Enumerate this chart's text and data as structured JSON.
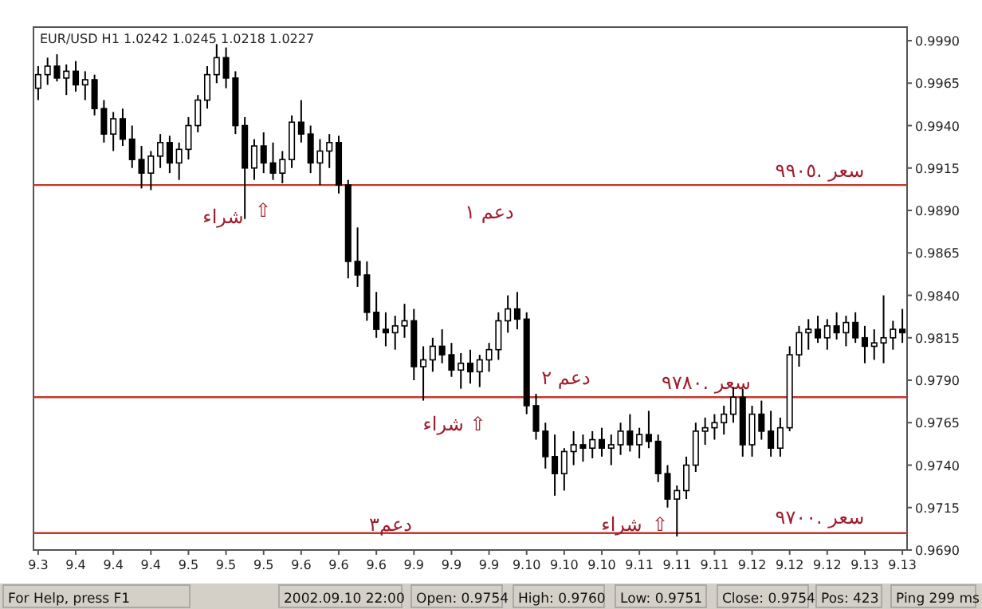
{
  "chart_data": {
    "type": "candlestick",
    "title": "EUR/USD H1  1.0242  1.0245  1.0218  1.0227",
    "categories": [
      "9.3",
      null,
      null,
      null,
      "9.4",
      null,
      null,
      null,
      "9.4",
      null,
      null,
      null,
      "9.4",
      null,
      null,
      null,
      "9.5",
      null,
      null,
      null,
      "9.5",
      null,
      null,
      null,
      "9.5",
      null,
      null,
      null,
      "9.6",
      null,
      null,
      null,
      "9.6",
      null,
      null,
      null,
      "9.6",
      null,
      null,
      null,
      "9.9",
      null,
      null,
      null,
      "9.9",
      null,
      null,
      null,
      "9.9",
      null,
      null,
      null,
      "9.10",
      null,
      null,
      null,
      "9.10",
      null,
      null,
      null,
      "9.10",
      null,
      null,
      null,
      "9.11",
      null,
      null,
      null,
      "9.11",
      null,
      null,
      null,
      "9.11",
      null,
      null,
      null,
      "9.12",
      null,
      null,
      null,
      "9.12",
      null,
      null,
      null,
      "9.12",
      null,
      null,
      null,
      "9.13",
      null,
      null,
      null,
      "9.13"
    ],
    "ohlc": [
      [
        0.9962,
        0.9975,
        0.9955,
        0.997
      ],
      [
        0.997,
        0.998,
        0.9964,
        0.9975
      ],
      [
        0.9975,
        0.9982,
        0.9966,
        0.9968
      ],
      [
        0.9968,
        0.9976,
        0.9958,
        0.9972
      ],
      [
        0.9972,
        0.9978,
        0.996,
        0.9964
      ],
      [
        0.9964,
        0.9972,
        0.9955,
        0.9967
      ],
      [
        0.9967,
        0.997,
        0.9946,
        0.995
      ],
      [
        0.995,
        0.9955,
        0.993,
        0.9935
      ],
      [
        0.9935,
        0.9948,
        0.9925,
        0.9944
      ],
      [
        0.9944,
        0.995,
        0.9928,
        0.9932
      ],
      [
        0.9932,
        0.994,
        0.9915,
        0.992
      ],
      [
        0.992,
        0.9928,
        0.9903,
        0.9912
      ],
      [
        0.9912,
        0.9925,
        0.9902,
        0.9922
      ],
      [
        0.9922,
        0.9935,
        0.9915,
        0.993
      ],
      [
        0.993,
        0.9934,
        0.9912,
        0.9918
      ],
      [
        0.9918,
        0.993,
        0.9908,
        0.9926
      ],
      [
        0.9926,
        0.9945,
        0.992,
        0.994
      ],
      [
        0.994,
        0.9958,
        0.9936,
        0.9955
      ],
      [
        0.9955,
        0.9975,
        0.995,
        0.997
      ],
      [
        0.997,
        0.9988,
        0.9965,
        0.998
      ],
      [
        0.998,
        0.9986,
        0.9962,
        0.9968
      ],
      [
        0.9968,
        0.9972,
        0.9935,
        0.994
      ],
      [
        0.994,
        0.9945,
        0.9885,
        0.9915
      ],
      [
        0.9915,
        0.9932,
        0.9908,
        0.9928
      ],
      [
        0.9928,
        0.9936,
        0.9912,
        0.9918
      ],
      [
        0.9918,
        0.993,
        0.9908,
        0.9912
      ],
      [
        0.9912,
        0.9925,
        0.9906,
        0.992
      ],
      [
        0.992,
        0.9946,
        0.9915,
        0.9942
      ],
      [
        0.9942,
        0.9955,
        0.993,
        0.9935
      ],
      [
        0.9935,
        0.994,
        0.9912,
        0.9918
      ],
      [
        0.9918,
        0.9932,
        0.9905,
        0.9925
      ],
      [
        0.9925,
        0.9935,
        0.9915,
        0.993
      ],
      [
        0.993,
        0.9934,
        0.99,
        0.9905
      ],
      [
        0.9905,
        0.9908,
        0.985,
        0.986
      ],
      [
        0.986,
        0.988,
        0.9845,
        0.9852
      ],
      [
        0.9852,
        0.986,
        0.9825,
        0.983
      ],
      [
        0.983,
        0.9842,
        0.9815,
        0.982
      ],
      [
        0.982,
        0.983,
        0.981,
        0.9818
      ],
      [
        0.9818,
        0.9828,
        0.9808,
        0.9822
      ],
      [
        0.9822,
        0.9835,
        0.9815,
        0.9825
      ],
      [
        0.9825,
        0.9832,
        0.979,
        0.9798
      ],
      [
        0.9798,
        0.981,
        0.9778,
        0.9802
      ],
      [
        0.9802,
        0.9815,
        0.9795,
        0.981
      ],
      [
        0.981,
        0.982,
        0.98,
        0.9805
      ],
      [
        0.9805,
        0.9812,
        0.9792,
        0.9796
      ],
      [
        0.9796,
        0.9806,
        0.9785,
        0.98
      ],
      [
        0.98,
        0.9808,
        0.9788,
        0.9795
      ],
      [
        0.9795,
        0.9805,
        0.9786,
        0.9802
      ],
      [
        0.9802,
        0.9812,
        0.9795,
        0.9808
      ],
      [
        0.9808,
        0.983,
        0.9802,
        0.9825
      ],
      [
        0.9825,
        0.984,
        0.9818,
        0.9832
      ],
      [
        0.9832,
        0.9842,
        0.982,
        0.9826
      ],
      [
        0.9826,
        0.983,
        0.977,
        0.9775
      ],
      [
        0.9775,
        0.9782,
        0.9755,
        0.976
      ],
      [
        0.976,
        0.9765,
        0.9738,
        0.9745
      ],
      [
        0.9745,
        0.9758,
        0.9722,
        0.9735
      ],
      [
        0.9735,
        0.975,
        0.9725,
        0.9748
      ],
      [
        0.9748,
        0.976,
        0.974,
        0.9752
      ],
      [
        0.9752,
        0.9758,
        0.9742,
        0.975
      ],
      [
        0.975,
        0.976,
        0.9744,
        0.9755
      ],
      [
        0.9755,
        0.9762,
        0.9745,
        0.975
      ],
      [
        0.975,
        0.9758,
        0.974,
        0.9752
      ],
      [
        0.9752,
        0.9765,
        0.9746,
        0.976
      ],
      [
        0.976,
        0.977,
        0.9748,
        0.9752
      ],
      [
        0.9752,
        0.9762,
        0.9744,
        0.9758
      ],
      [
        0.9758,
        0.9772,
        0.975,
        0.9754
      ],
      [
        0.9754,
        0.9758,
        0.973,
        0.9735
      ],
      [
        0.9735,
        0.974,
        0.9715,
        0.972
      ],
      [
        0.972,
        0.9728,
        0.9698,
        0.9725
      ],
      [
        0.9725,
        0.9745,
        0.972,
        0.974
      ],
      [
        0.974,
        0.9765,
        0.9736,
        0.976
      ],
      [
        0.976,
        0.9768,
        0.9752,
        0.9762
      ],
      [
        0.9762,
        0.977,
        0.9755,
        0.9765
      ],
      [
        0.9765,
        0.9775,
        0.9758,
        0.977
      ],
      [
        0.977,
        0.9786,
        0.9765,
        0.978
      ],
      [
        0.978,
        0.9785,
        0.9745,
        0.9752
      ],
      [
        0.9752,
        0.9775,
        0.9745,
        0.977
      ],
      [
        0.977,
        0.9778,
        0.9755,
        0.976
      ],
      [
        0.976,
        0.9772,
        0.9745,
        0.975
      ],
      [
        0.975,
        0.9768,
        0.9745,
        0.9762
      ],
      [
        0.9762,
        0.981,
        0.976,
        0.9805
      ],
      [
        0.9805,
        0.9822,
        0.9798,
        0.9818
      ],
      [
        0.9818,
        0.9826,
        0.9808,
        0.982
      ],
      [
        0.982,
        0.9828,
        0.9812,
        0.9815
      ],
      [
        0.9815,
        0.9826,
        0.9808,
        0.9822
      ],
      [
        0.9822,
        0.983,
        0.9814,
        0.9818
      ],
      [
        0.9818,
        0.9828,
        0.981,
        0.9824
      ],
      [
        0.9824,
        0.983,
        0.9812,
        0.9815
      ],
      [
        0.9815,
        0.9822,
        0.98,
        0.981
      ],
      [
        0.981,
        0.982,
        0.9802,
        0.9812
      ],
      [
        0.9812,
        0.984,
        0.98,
        0.9815
      ],
      [
        0.9815,
        0.9825,
        0.9808,
        0.982
      ],
      [
        0.982,
        0.9832,
        0.9812,
        0.9818
      ]
    ],
    "ylim": [
      0.969,
      0.9998
    ],
    "yticks": [
      {
        "value": 0.969,
        "label": "0.9690"
      },
      {
        "value": 0.9715,
        "label": "0.9715"
      },
      {
        "value": 0.974,
        "label": "0.9740"
      },
      {
        "value": 0.9765,
        "label": "0.9765"
      },
      {
        "value": 0.979,
        "label": "0.9790"
      },
      {
        "value": 0.9815,
        "label": "0.9815"
      },
      {
        "value": 0.984,
        "label": "0.9840"
      },
      {
        "value": 0.9865,
        "label": "0.9865"
      },
      {
        "value": 0.989,
        "label": "0.9890"
      },
      {
        "value": 0.9915,
        "label": "0.9915"
      },
      {
        "value": 0.994,
        "label": "0.9940"
      },
      {
        "value": 0.9965,
        "label": "0.9965"
      },
      {
        "value": 0.999,
        "label": "0.9990"
      }
    ],
    "ref_lines": [
      {
        "axis": "y",
        "value": 0.9905,
        "label": "سعر .٩٩٠٥",
        "color": "#c0392b"
      },
      {
        "axis": "y",
        "value": 0.978,
        "label": "سعر .٩٧٨٠",
        "color": "#c0392b"
      },
      {
        "axis": "y",
        "value": 0.97,
        "label": "سعر .٩٧٠٠",
        "color": "#c0392b"
      }
    ],
    "annotations": [
      "شراء",
      "⇧",
      "دعم ١",
      "⇧ شراء",
      "دعم ٢",
      "دعم٣",
      "شراء",
      "⇧",
      "For Help, press F1",
      "2002.09.10 22:00",
      "Open: 0.9754",
      "High: 0.9760",
      "Low: 0.9751",
      "Close: 0.9754",
      "Pos: 423",
      "Ping 299 ms"
    ],
    "grid": false
  }
}
